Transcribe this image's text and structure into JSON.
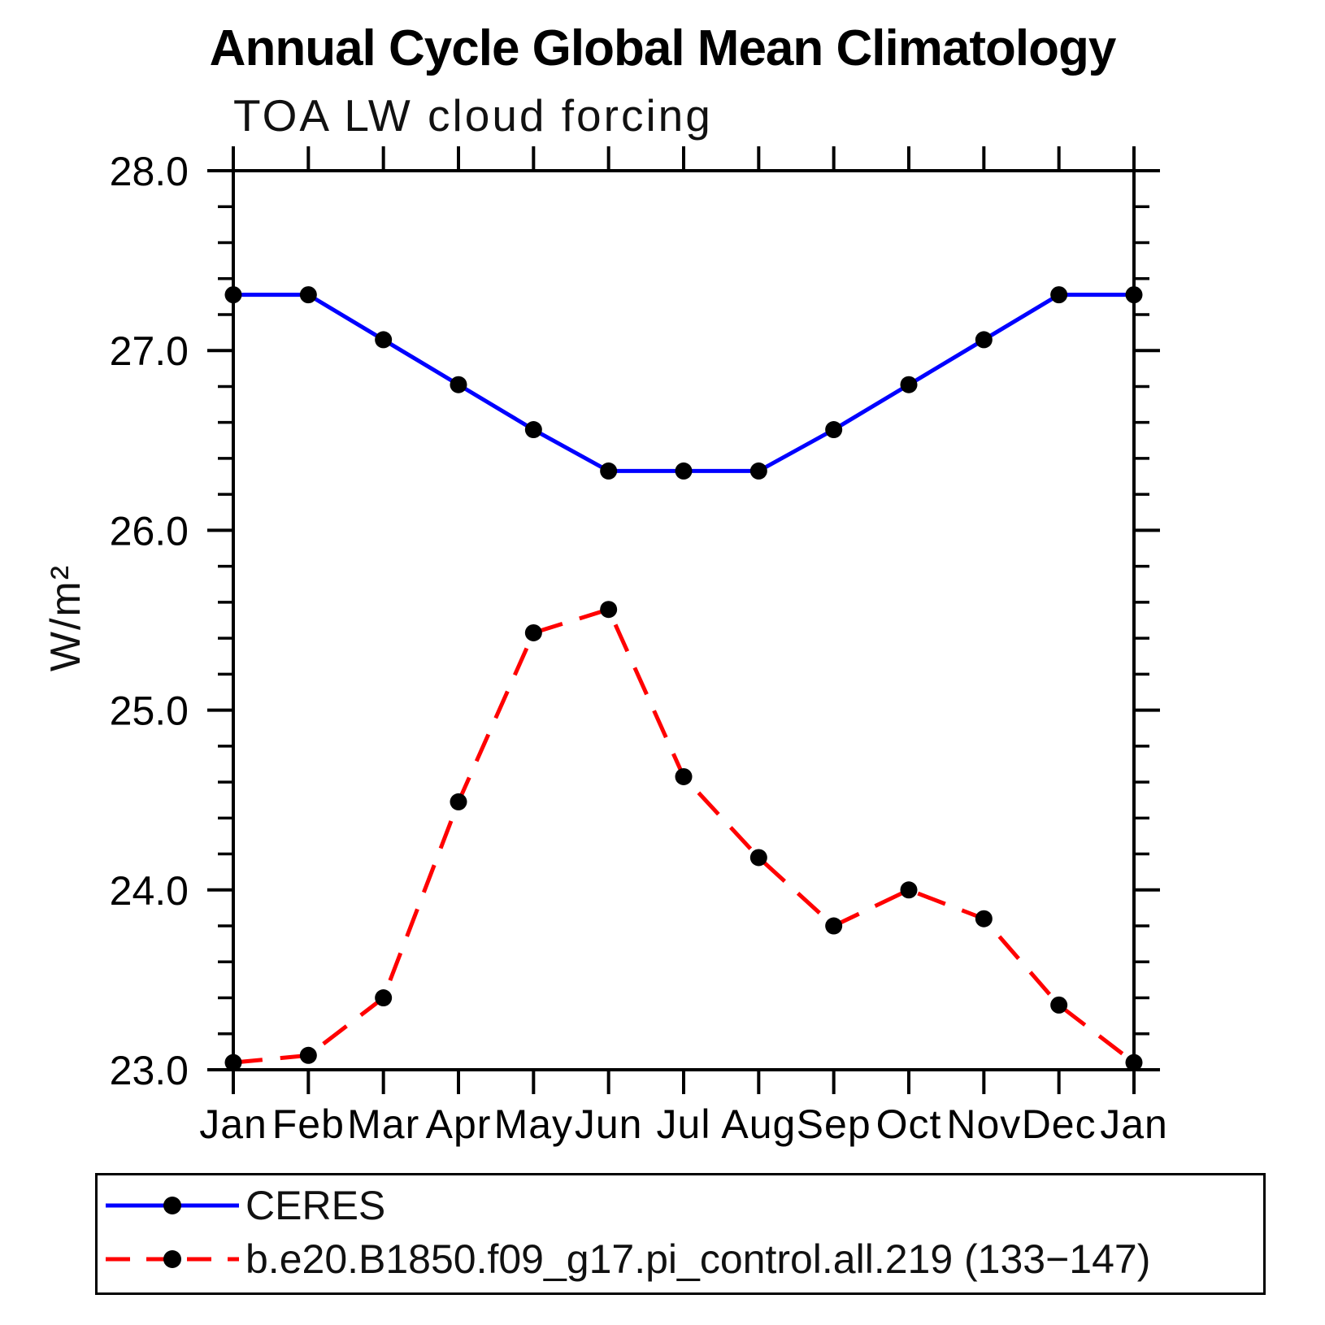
{
  "chart_data": {
    "type": "line",
    "title": "Annual Cycle Global Mean Climatology",
    "subtitle": "TOA LW cloud forcing",
    "ylabel": "W/m²",
    "xlabel": "",
    "categories": [
      "Jan",
      "Feb",
      "Mar",
      "Apr",
      "May",
      "Jun",
      "Jul",
      "Aug",
      "Sep",
      "Oct",
      "Nov",
      "Dec",
      "Jan"
    ],
    "ylim": [
      23.0,
      28.0
    ],
    "ytick_values": [
      28,
      27,
      26,
      25,
      24,
      23
    ],
    "ytick_labels": [
      "28.0",
      "27.0",
      "26.0",
      "25.0",
      "24.0",
      "23.0"
    ],
    "ytick_minor_step": 0.2,
    "grid": false,
    "legend_position": "bottom-left-box",
    "axis_color": "#000000",
    "marker_color": "#000000",
    "series": [
      {
        "name": "CERES",
        "color": "#0000ff",
        "style": "solid",
        "marker": "circle",
        "marker_color": "#000000",
        "values": [
          27.31,
          27.31,
          27.06,
          26.81,
          26.56,
          26.33,
          26.33,
          26.33,
          26.56,
          26.81,
          27.06,
          27.31,
          27.31
        ]
      },
      {
        "name": "b.e20.B1850.f09_g17.pi_control.all.219 (133−147)",
        "color": "#ff0000",
        "style": "dashed",
        "marker": "circle",
        "marker_color": "#000000",
        "values": [
          23.04,
          23.08,
          23.4,
          24.49,
          25.43,
          25.56,
          24.63,
          24.18,
          23.8,
          24.0,
          23.84,
          23.36,
          23.04
        ]
      }
    ]
  }
}
